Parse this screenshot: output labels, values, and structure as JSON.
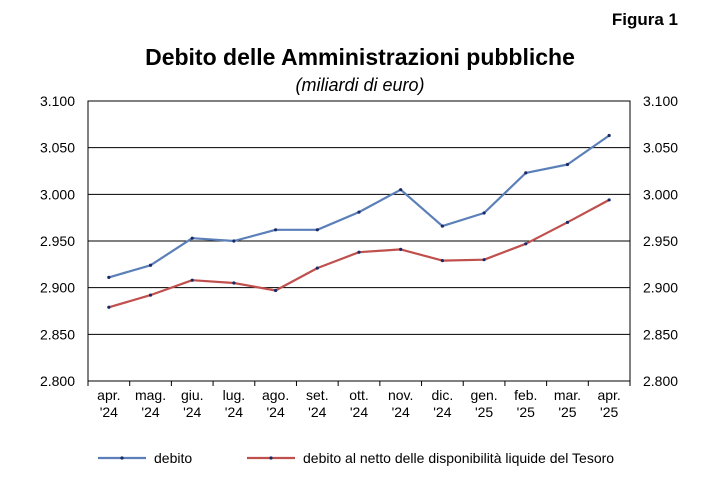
{
  "figure_label": "Figura 1",
  "chart_data": {
    "type": "line",
    "title": "Debito delle Amministrazioni pubbliche",
    "subtitle": "(miliardi di euro)",
    "categories": [
      [
        "apr.",
        "'24"
      ],
      [
        "mag.",
        "'24"
      ],
      [
        "giu.",
        "'24"
      ],
      [
        "lug.",
        "'24"
      ],
      [
        "ago.",
        "'24"
      ],
      [
        "set.",
        "'24"
      ],
      [
        "ott.",
        "'24"
      ],
      [
        "nov.",
        "'24"
      ],
      [
        "dic.",
        "'24"
      ],
      [
        "gen.",
        "'25"
      ],
      [
        "feb.",
        "'25"
      ],
      [
        "mar.",
        "'25"
      ],
      [
        "apr.",
        "'25"
      ]
    ],
    "ylim": [
      2800,
      3100
    ],
    "yticks": [
      2800,
      2850,
      2900,
      2950,
      3000,
      3050,
      3100
    ],
    "ytick_labels": [
      "2.800",
      "2.850",
      "2.900",
      "2.950",
      "3.000",
      "3.050",
      "3.100"
    ],
    "grid": true,
    "legend": "bottom",
    "series": [
      {
        "name": "debito",
        "color": "#5b7fb8",
        "values": [
          2911,
          2924,
          2953,
          2950,
          2962,
          2962,
          2981,
          3005,
          2966,
          2980,
          3023,
          3032,
          3063
        ]
      },
      {
        "name": "debito al netto delle disponibilità liquide del Tesoro",
        "color": "#c0504d",
        "values": [
          2879,
          2892,
          2908,
          2905,
          2897,
          2921,
          2938,
          2941,
          2929,
          2930,
          2947,
          2970,
          2994
        ]
      }
    ]
  }
}
